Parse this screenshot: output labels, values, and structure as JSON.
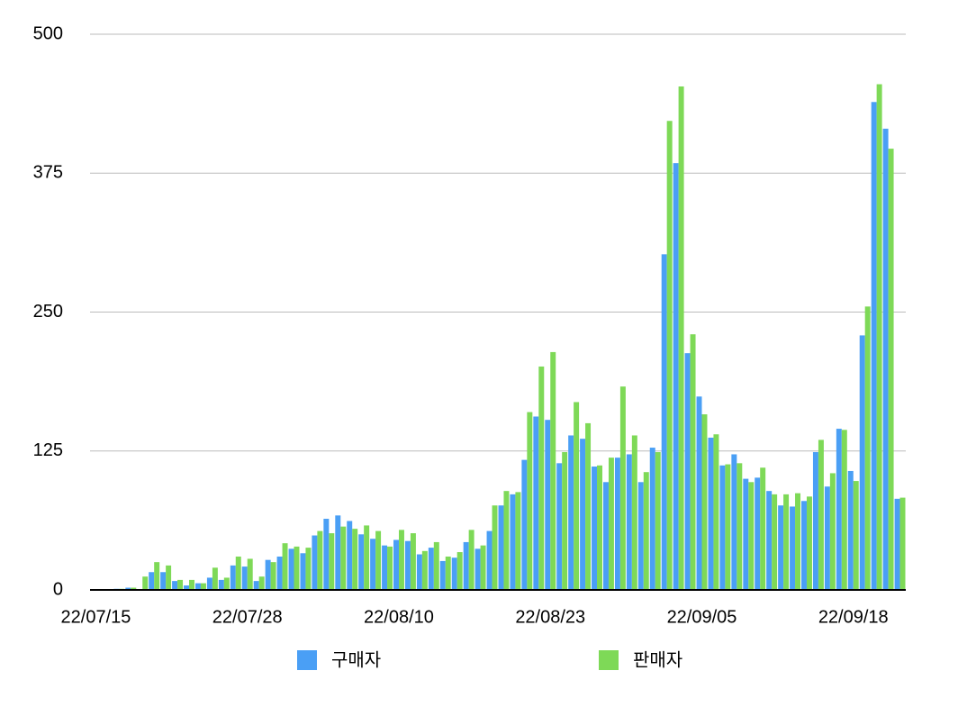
{
  "chart_data": {
    "type": "bar",
    "categories": [
      "22/07/15",
      null,
      null,
      null,
      null,
      null,
      null,
      null,
      null,
      null,
      null,
      null,
      null,
      "22/07/28",
      null,
      null,
      null,
      null,
      null,
      null,
      null,
      null,
      null,
      null,
      null,
      null,
      "22/08/10",
      null,
      null,
      null,
      null,
      null,
      null,
      null,
      null,
      null,
      null,
      null,
      null,
      "22/08/23",
      null,
      null,
      null,
      null,
      null,
      null,
      null,
      null,
      null,
      null,
      null,
      null,
      "22/09/05",
      null,
      null,
      null,
      null,
      null,
      null,
      null,
      null,
      null,
      null,
      null,
      null,
      "22/09/18",
      null,
      null,
      null,
      null
    ],
    "series": [
      {
        "name": "구매자",
        "color": "#4a9ff5",
        "values": [
          0,
          0,
          1,
          2,
          0,
          16,
          16,
          8,
          4,
          6,
          11,
          9,
          22,
          21,
          8,
          27,
          30,
          37,
          33,
          49,
          64,
          67,
          62,
          50,
          46,
          40,
          45,
          44,
          32,
          38,
          26,
          29,
          43,
          37,
          53,
          76,
          86,
          117,
          156,
          153,
          114,
          139,
          136,
          111,
          97,
          119,
          122,
          97,
          128,
          302,
          384,
          213,
          174,
          137,
          112,
          122,
          100,
          101,
          89,
          76,
          75,
          80,
          124,
          93,
          145,
          107,
          229,
          439,
          415,
          82
        ]
      },
      {
        "name": "판매자",
        "color": "#7ed957",
        "values": [
          0,
          0,
          1,
          2,
          12,
          25,
          22,
          9,
          9,
          6,
          20,
          11,
          30,
          28,
          12,
          25,
          42,
          39,
          38,
          53,
          51,
          57,
          55,
          58,
          53,
          39,
          54,
          51,
          35,
          43,
          30,
          34,
          54,
          40,
          76,
          89,
          88,
          160,
          201,
          214,
          124,
          169,
          150,
          112,
          119,
          183,
          139,
          106,
          124,
          422,
          453,
          230,
          158,
          140,
          113,
          114,
          97,
          110,
          86,
          86,
          87,
          84,
          135,
          105,
          144,
          98,
          255,
          455,
          397,
          83
        ]
      }
    ],
    "ylim": [
      0,
      500
    ],
    "yticks": [
      0,
      125,
      250,
      375,
      500
    ],
    "grid": true
  }
}
